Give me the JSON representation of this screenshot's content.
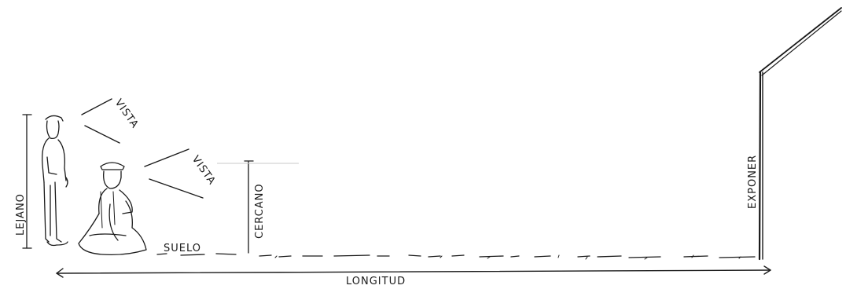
{
  "labels": {
    "vista_standing": "VISTA",
    "vista_seated": "VISTA",
    "lejano": "LEJANO",
    "cercano": "CERCANO",
    "suelo": "SUELO",
    "exponer": "EXPONER",
    "longitud": "LONGITUD"
  },
  "colors": {
    "ink": "#1a1a1a",
    "faint": "#c8c8c8",
    "background": "#ffffff"
  }
}
